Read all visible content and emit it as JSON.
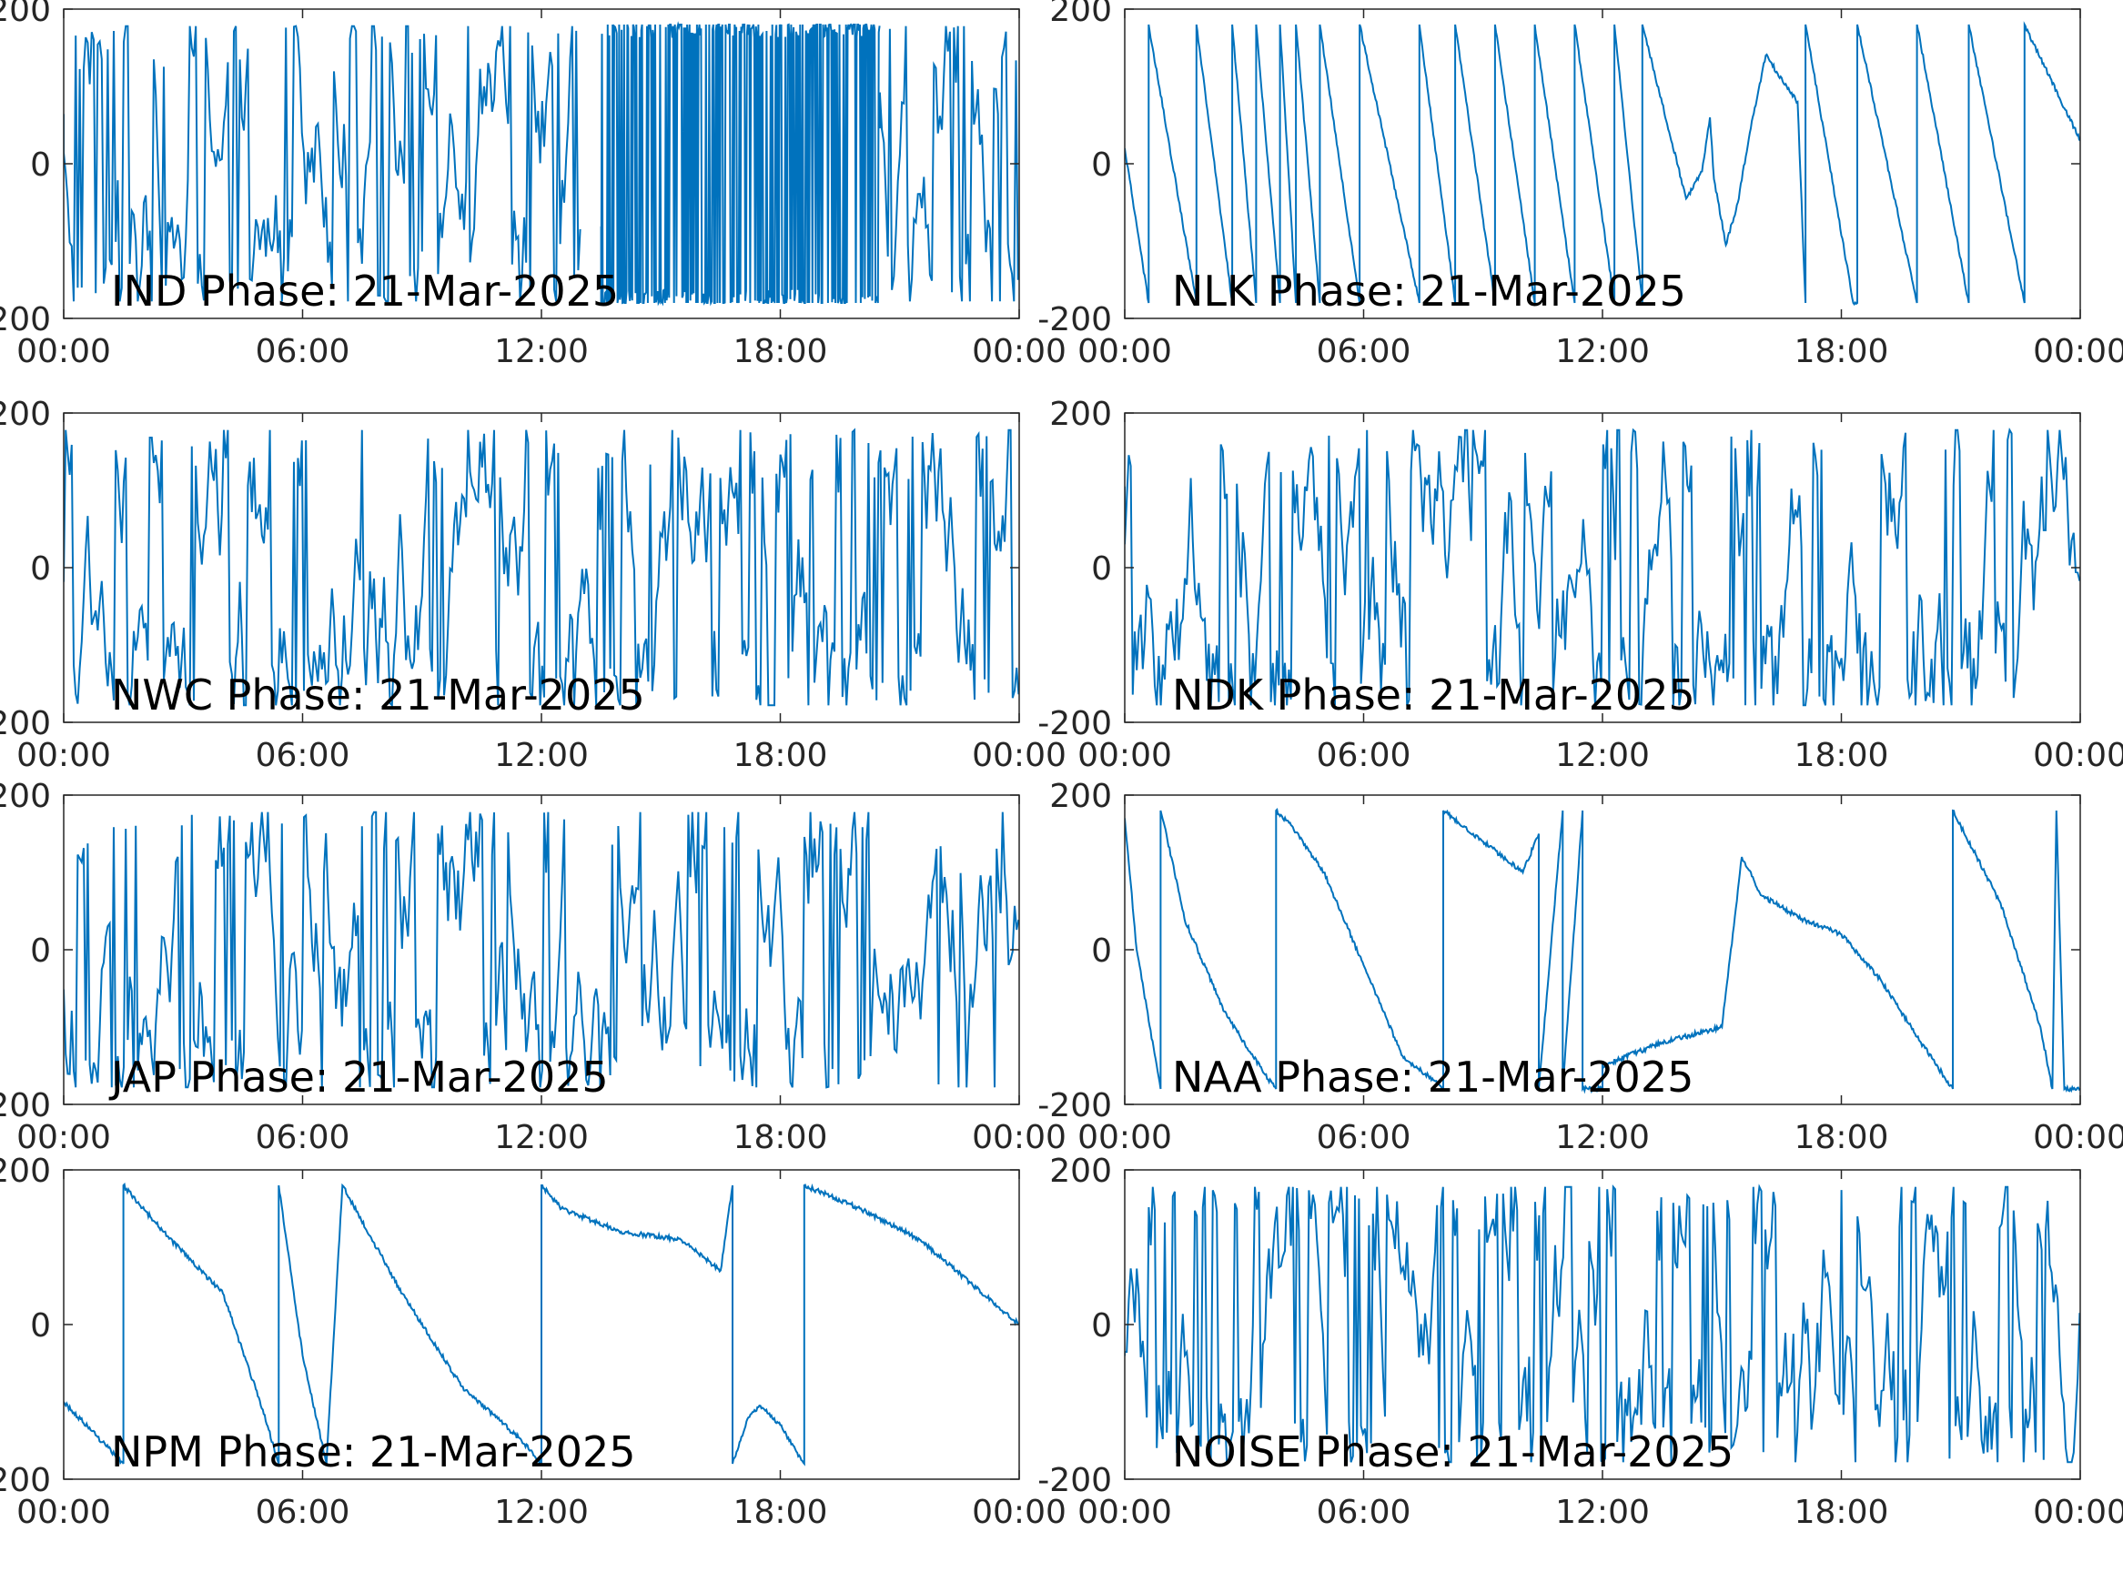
{
  "line_color": "#0072BD",
  "x_ticks": [
    "00:00",
    "06:00",
    "12:00",
    "18:00",
    "00:00"
  ],
  "y_ticks": [
    "-200",
    "0",
    "200"
  ],
  "chart_data": [
    {
      "type": "line",
      "title": "IND Phase: 21-Mar-2025",
      "ylim": [
        -200,
        200
      ],
      "xlim": [
        "21-Mar-2025 00:00",
        "22-Mar-2025 00:00"
      ],
      "grid": false,
      "pattern": "noise",
      "regime": [
        {
          "from": 0,
          "to": 13,
          "style": "dense wrapping phase"
        },
        {
          "from": 13.5,
          "to": 20.5,
          "style": "very dense solid wrapping phase"
        },
        {
          "from": 20.5,
          "to": 24,
          "style": "dense wrapping phase"
        }
      ]
    },
    {
      "type": "line",
      "title": "NLK Phase: 21-Mar-2025",
      "ylim": [
        -200,
        200
      ],
      "xlim": [
        "21-Mar-2025 00:00",
        "22-Mar-2025 00:00"
      ],
      "grid": false,
      "pattern": "path",
      "x_hours": [
        0,
        0.6,
        0.6,
        1.8,
        1.8,
        2.7,
        2.7,
        3.3,
        3.3,
        3.9,
        3.9,
        4.3,
        4.3,
        4.9,
        4.9,
        5.9,
        5.9,
        7.4,
        7.4,
        8.3,
        8.3,
        9.3,
        9.3,
        10.3,
        10.3,
        11.3,
        11.3,
        12.3,
        12.3,
        13.0,
        13.0,
        14.1,
        14.5,
        14.7,
        14.8,
        15.1,
        15.4,
        15.7,
        16.1,
        16.9,
        17.1,
        17.1,
        18.3,
        18.4,
        18.4,
        19.9,
        19.9,
        21.2,
        21.2,
        22.6,
        22.6,
        24.0
      ],
      "y_deg": [
        20,
        -180,
        180,
        -180,
        180,
        -180,
        180,
        -180,
        180,
        -180,
        180,
        -180,
        180,
        -180,
        180,
        -180,
        180,
        -180,
        180,
        -180,
        180,
        -180,
        180,
        -180,
        180,
        -180,
        180,
        -180,
        180,
        -180,
        180,
        -45,
        -10,
        60,
        -20,
        -105,
        -50,
        40,
        140,
        80,
        -180,
        180,
        -180,
        -180,
        180,
        -180,
        180,
        -180,
        180,
        -180,
        180,
        30
      ]
    },
    {
      "type": "line",
      "title": "NWC Phase: 21-Mar-2025",
      "ylim": [
        -200,
        200
      ],
      "xlim": [
        "21-Mar-2025 00:00",
        "22-Mar-2025 00:00"
      ],
      "grid": false,
      "pattern": "noise",
      "regime": [
        {
          "from": 0,
          "to": 24,
          "style": "dense wrapping phase"
        }
      ]
    },
    {
      "type": "line",
      "title": "NDK Phase: 21-Mar-2025",
      "ylim": [
        -200,
        200
      ],
      "xlim": [
        "21-Mar-2025 00:00",
        "22-Mar-2025 00:00"
      ],
      "grid": false,
      "pattern": "noise",
      "regime": [
        {
          "from": 0,
          "to": 24,
          "style": "dense wrapping phase"
        }
      ]
    },
    {
      "type": "line",
      "title": "JAP Phase: 21-Mar-2025",
      "ylim": [
        -200,
        200
      ],
      "xlim": [
        "21-Mar-2025 00:00",
        "22-Mar-2025 00:00"
      ],
      "grid": false,
      "pattern": "noise",
      "regime": [
        {
          "from": 0,
          "to": 24,
          "style": "dense wrapping phase"
        }
      ]
    },
    {
      "type": "line",
      "title": "NAA Phase: 21-Mar-2025",
      "ylim": [
        -200,
        200
      ],
      "xlim": [
        "21-Mar-2025 00:00",
        "22-Mar-2025 00:00"
      ],
      "grid": false,
      "pattern": "path",
      "x_hours": [
        0,
        0.3,
        0.9,
        0.9,
        1.0,
        1.5,
        2.5,
        3.5,
        3.8,
        3.8,
        4.2,
        5.0,
        6.0,
        7.0,
        7.8,
        8.0,
        8.0,
        9.0,
        10.0,
        10.4,
        10.4,
        11.0,
        11.0,
        11.5,
        11.5,
        12.0,
        12.0,
        13.5,
        15.0,
        15.5,
        16.0,
        17.0,
        18.0,
        19.0,
        20.0,
        20.8,
        20.8,
        21.0,
        22.0,
        23.0,
        23.3,
        23.4,
        23.6,
        24.0
      ],
      "y_deg": [
        170,
        0,
        -180,
        180,
        160,
        40,
        -80,
        -160,
        -180,
        180,
        160,
        100,
        -20,
        -140,
        -170,
        -180,
        180,
        140,
        100,
        150,
        -180,
        180,
        -180,
        180,
        -180,
        -180,
        -150,
        -120,
        -100,
        120,
        70,
        40,
        20,
        -40,
        -120,
        -180,
        180,
        160,
        60,
        -100,
        -180,
        180,
        -180,
        -180
      ]
    },
    {
      "type": "line",
      "title": "NPM Phase: 21-Mar-2025",
      "ylim": [
        -200,
        200
      ],
      "xlim": [
        "21-Mar-2025 00:00",
        "22-Mar-2025 00:00"
      ],
      "grid": false,
      "pattern": "path",
      "x_hours": [
        0,
        1.5,
        1.5,
        1.5,
        2.5,
        4.0,
        5.0,
        5.4,
        5.4,
        6.0,
        6.6,
        7.0,
        7.0,
        8.5,
        10.0,
        11.5,
        12.0,
        12.0,
        12.5,
        14.0,
        15.5,
        16.5,
        16.8,
        16.8,
        17.0,
        17.2,
        17.5,
        18.0,
        18.6,
        18.6,
        20.0,
        21.5,
        24.0
      ],
      "y_deg": [
        -100,
        -180,
        180,
        180,
        120,
        40,
        -110,
        -180,
        180,
        -40,
        -180,
        180,
        180,
        40,
        -80,
        -150,
        -180,
        180,
        150,
        120,
        110,
        70,
        180,
        -180,
        -150,
        -120,
        -105,
        -130,
        -180,
        180,
        150,
        110,
        0
      ]
    },
    {
      "type": "line",
      "title": "NOISE Phase: 21-Mar-2025",
      "ylim": [
        -200,
        200
      ],
      "xlim": [
        "21-Mar-2025 00:00",
        "22-Mar-2025 00:00"
      ],
      "grid": false,
      "pattern": "noise",
      "regime": [
        {
          "from": 0,
          "to": 24,
          "style": "dense wrapping phase"
        }
      ]
    }
  ]
}
